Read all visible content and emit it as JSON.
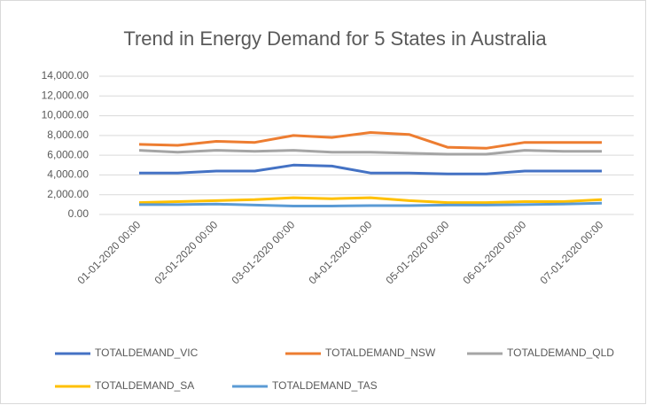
{
  "chart_data": {
    "type": "line",
    "title": "Trend in Energy Demand for 5 States in Australia",
    "categories": [
      "01-01-2020 00:00",
      null,
      "02-01-2020 00:00",
      null,
      "03-01-2020 00:00",
      null,
      "04-01-2020 00:00",
      null,
      "05-01-2020 00:00",
      null,
      "06-01-2020 00:00",
      null,
      "07-01-2020 00:00"
    ],
    "series": [
      {
        "name": "TOTALDEMAND_VIC",
        "color": "#4472c4",
        "values": [
          4200,
          4200,
          4400,
          4400,
          5000,
          4900,
          4200,
          4200,
          4100,
          4100,
          4400,
          4400,
          4400
        ]
      },
      {
        "name": "TOTALDEMAND_NSW",
        "color": "#ed7d31",
        "values": [
          7100,
          7000,
          7400,
          7300,
          8000,
          7800,
          8300,
          8100,
          6800,
          6700,
          7300,
          7300,
          7300
        ]
      },
      {
        "name": "TOTALDEMAND_QLD",
        "color": "#a5a5a5",
        "values": [
          6500,
          6300,
          6500,
          6400,
          6500,
          6300,
          6300,
          6200,
          6100,
          6100,
          6500,
          6400,
          6400
        ]
      },
      {
        "name": "TOTALDEMAND_SA",
        "color": "#ffc000",
        "values": [
          1200,
          1300,
          1400,
          1500,
          1700,
          1600,
          1700,
          1400,
          1200,
          1200,
          1300,
          1300,
          1500
        ]
      },
      {
        "name": "TOTALDEMAND_TAS",
        "color": "#5b9bd5",
        "values": [
          1000,
          1000,
          1050,
          950,
          850,
          850,
          900,
          900,
          950,
          950,
          1000,
          1050,
          1150
        ]
      }
    ],
    "ylim": [
      0,
      14000
    ],
    "yticks": [
      {
        "value": 0,
        "label": "0.00"
      },
      {
        "value": 2000,
        "label": "2,000.00"
      },
      {
        "value": 4000,
        "label": "4,000.00"
      },
      {
        "value": 6000,
        "label": "6,000.00"
      },
      {
        "value": 8000,
        "label": "8,000.00"
      },
      {
        "value": 10000,
        "label": "10,000.00"
      },
      {
        "value": 12000,
        "label": "12,000.00"
      },
      {
        "value": 14000,
        "label": "14,000.00"
      }
    ],
    "grid": true
  }
}
